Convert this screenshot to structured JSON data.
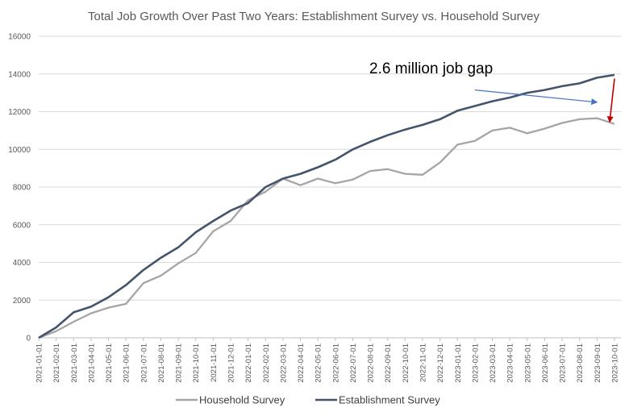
{
  "chart_data": {
    "type": "line",
    "title": "Total Job Growth Over Past Two Years: Establishment Survey vs. Household Survey",
    "xlabel": "",
    "ylabel": "",
    "ylim": [
      0,
      16000
    ],
    "yticks": [
      "0",
      "2000",
      "4000",
      "6000",
      "8000",
      "10000",
      "12000",
      "14000",
      "16000"
    ],
    "grid": true,
    "legend": "bottom",
    "x": [
      "2021-01-01",
      "2021-02-01",
      "2021-03-01",
      "2021-04-01",
      "2021-05-01",
      "2021-06-01",
      "2021-07-01",
      "2021-08-01",
      "2021-09-01",
      "2021-10-01",
      "2021-11-01",
      "2021-12-01",
      "2022-01-01",
      "2022-02-01",
      "2022-03-01",
      "2022-04-01",
      "2022-05-01",
      "2022-06-01",
      "2022-07-01",
      "2022-08-01",
      "2022-09-01",
      "2022-10-01",
      "2022-11-01",
      "2022-12-01",
      "2023-01-01",
      "2023-02-01",
      "2023-03-01",
      "2023-04-01",
      "2023-05-01",
      "2023-06-01",
      "2023-07-01",
      "2023-08-01",
      "2023-09-01",
      "2023-10-01"
    ],
    "series": [
      {
        "name": "Household Survey",
        "color": "#a5a5a5",
        "values": [
          0,
          350,
          850,
          1300,
          1600,
          1800,
          2900,
          3300,
          3950,
          4500,
          5650,
          6200,
          7300,
          7750,
          8450,
          8100,
          8450,
          8200,
          8400,
          8850,
          8950,
          8700,
          8650,
          9300,
          10250,
          10450,
          11000,
          11150,
          10850,
          11100,
          11400,
          11600,
          11650,
          11350
        ]
      },
      {
        "name": "Establishment Survey",
        "color": "#44546a",
        "values": [
          0,
          550,
          1350,
          1650,
          2150,
          2800,
          3600,
          4250,
          4800,
          5600,
          6200,
          6750,
          7150,
          8000,
          8450,
          8700,
          9050,
          9450,
          10000,
          10400,
          10750,
          11050,
          11300,
          11600,
          12050,
          12300,
          12550,
          12750,
          13000,
          13150,
          13350,
          13500,
          13800,
          13950
        ]
      }
    ],
    "annotations": [
      {
        "text": "2.6 million job gap",
        "type": "text"
      },
      {
        "type": "arrow",
        "color": "#4472c4",
        "from": {
          "x": "2023-02-01",
          "y": 13150
        },
        "to": {
          "x": "2023-09-01",
          "y": 12500
        }
      },
      {
        "type": "arrow",
        "color": "#c00000",
        "from": {
          "x": "2023-10-01",
          "y": 13750
        },
        "to": {
          "x": "2023-10-01",
          "y": 11450
        }
      }
    ]
  }
}
